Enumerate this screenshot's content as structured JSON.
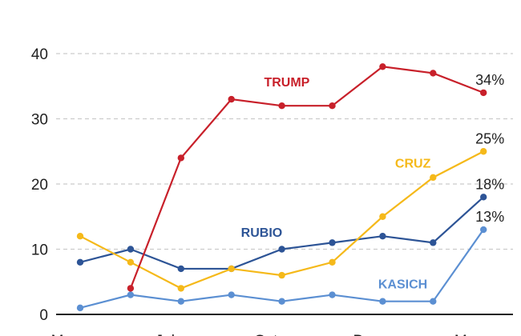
{
  "chart_data": {
    "type": "line",
    "title": "",
    "xlabel": "",
    "ylabel": "",
    "ylim": [
      0,
      40
    ],
    "yticks": [
      0,
      10,
      20,
      30,
      40
    ],
    "grid": true,
    "x_tick_labels": [
      "Mar",
      "Jul",
      "Oct",
      "Dec",
      "Mar"
    ],
    "x_tick_positions": [
      0,
      2,
      4,
      6,
      8
    ],
    "x": [
      0,
      1,
      2,
      3,
      4,
      5,
      6,
      7,
      8
    ],
    "series": [
      {
        "name": "TRUMP",
        "color": "#c8202a",
        "values": [
          null,
          4,
          24,
          33,
          32,
          32,
          38,
          37,
          34
        ],
        "end_label": "34%",
        "name_at": [
          4.1,
          35
        ]
      },
      {
        "name": "CRUZ",
        "color": "#f5b91a",
        "values": [
          12,
          8,
          4,
          7,
          6,
          8,
          15,
          21,
          25
        ],
        "end_label": "25%",
        "name_at": [
          6.6,
          22.5
        ]
      },
      {
        "name": "RUBIO",
        "color": "#2d5496",
        "values": [
          8,
          10,
          7,
          7,
          10,
          11,
          12,
          11,
          18
        ],
        "end_label": "18%",
        "name_at": [
          3.6,
          11.9
        ]
      },
      {
        "name": "KASICH",
        "color": "#5b8fd2",
        "values": [
          1,
          3,
          2,
          3,
          2,
          3,
          2,
          2,
          13
        ],
        "end_label": "13%",
        "name_at": [
          6.4,
          4
        ]
      }
    ]
  }
}
